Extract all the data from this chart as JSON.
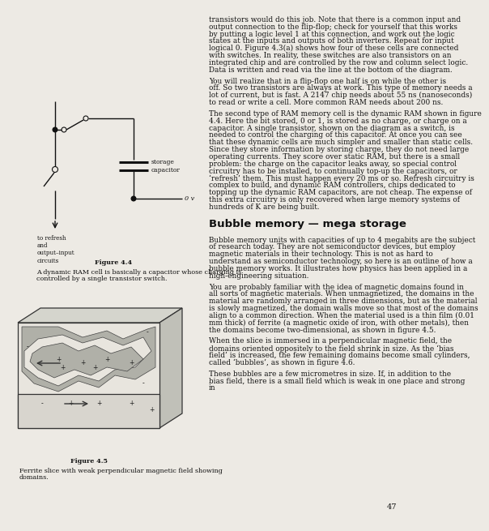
{
  "page_bg": "#edeae4",
  "text_color": "#111111",
  "page_number": "47",
  "para1": "transistors would do this job. Note that there is a common input and output connection to the flip-flop; check for yourself that this works by putting a logic level 1 at this connection, and work out the logic states at the inputs and outputs of both inverters. Repeat for input logical 0. Figure 4.3(a) shows how four of these cells are connected with switches. In reality, these switches are also transistors on an integrated chip and are controlled by the row and column select logic. Data is written and read via the line at the bottom of the diagram.",
  "para2": "You will realize that in a flip-flop one half is on while the other is off. So two transistors are always at work. This type of memory needs a lot of current, but is fast. A 2147 chip needs about 55 ns (nanoseconds) to read or write a cell. More common RAM needs about 200 ns.",
  "para3": "The second type of RAM memory cell is the dynamic RAM shown in figure 4.4. Here the bit stored, 0 or 1, is stored as no charge, or charge on a capacitor. A single transistor, shown on the diagram as a switch, is needed to control the charging of this capacitor. At once you can see that these dynamic cells are much simpler and smaller than static cells. Since they store information by storing charge, they do not need large operating currents. They score over static RAM, but there is a small problem: the charge on the capacitor leaks away, so special control circuitry has to be installed, to continually top-up the capacitors, or ‘refresh’ them. This must happen every 20 ms or so. Refresh circuitry is complex to build, and dynamic RAM controllers, chips dedicated to topping up the dynamic RAM capacitors, are not cheap. The expense of this extra circuitry is only recovered when large memory systems of hundreds of K are being built.",
  "section_heading": "Bubble memory — mega storage",
  "para4": "Bubble memory units with capacities of up to 4 megabits are the subject of research today. They are not semiconductor devices, but employ magnetic materials in their technology. This is not as hard to understand as semiconductor technology, so here is an outline of how a bubble memory works. It illustrates how physics has been applied in a high-engineering situation.",
  "para5": "You are probably familiar with the idea of magnetic domains found in all sorts of magnetic materials. When unmagnetized, the domains in the material are randomly arranged in three dimensions, but as the material is slowly magnetized, the domain walls move so that most of the domains align to a common direction. When the material used is a thin film (0.01 mm thick) of ferrite (a magnetic oxide of iron, with other metals), then the domains become two-dimensional, as shown in figure 4.5.",
  "para6": "When the slice is immersed in a perpendicular magnetic field, the domains oriented oppositely to the field shrink in size. As the ‘bias field’ is increased, the few remaining domains become small cylinders, called ‘bubbles’, as shown in figure 4.6.",
  "para7": "These bubbles are a few micrometres in size. If, in addition to the bias field, there is a small field which is weak in one place and strong in",
  "fig44_caption_bold": "Figure 4.4",
  "fig44_caption": "A dynamic RAM cell is basically a capacitor whose charging is controlled by a single transistor switch.",
  "fig45_caption_bold": "Figure 4.5",
  "fig45_caption": "Ferrite slice with weak perpendicular magnetic field showing domains.",
  "left_label": "to refresh\nand\noutput–input\ncircuits"
}
